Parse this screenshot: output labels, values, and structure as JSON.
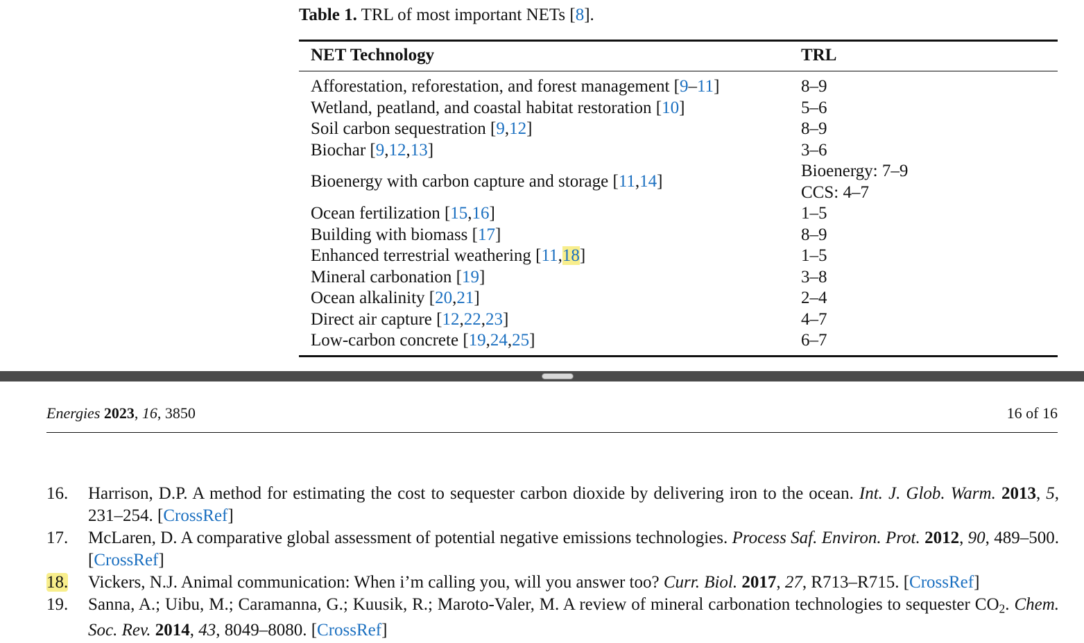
{
  "table": {
    "caption": [
      {
        "text": "Table 1.",
        "style": "bold"
      },
      " TRL of most important NETs [",
      {
        "text": "8",
        "style": "link"
      },
      "]."
    ],
    "headers": [
      "NET Technology",
      "TRL"
    ],
    "rows": [
      {
        "technology": [
          "Afforestation, reforestation, and forest management [",
          {
            "text": "9",
            "style": "link"
          },
          "–",
          {
            "text": "11",
            "style": "link"
          },
          "]"
        ],
        "trl": [
          "8–9"
        ]
      },
      {
        "technology": [
          "Wetland, peatland, and coastal habitat restoration [",
          {
            "text": "10",
            "style": "link"
          },
          "]"
        ],
        "trl": [
          "5–6"
        ]
      },
      {
        "technology": [
          "Soil carbon sequestration [",
          {
            "text": "9",
            "style": "link"
          },
          ",",
          {
            "text": "12",
            "style": "link"
          },
          "]"
        ],
        "trl": [
          "8–9"
        ]
      },
      {
        "technology": [
          "Biochar [",
          {
            "text": "9",
            "style": "link"
          },
          ",",
          {
            "text": "12",
            "style": "link"
          },
          ",",
          {
            "text": "13",
            "style": "link"
          },
          "]"
        ],
        "trl": [
          "3–6"
        ]
      },
      {
        "technology": [
          "Bioenergy with carbon capture and storage [",
          {
            "text": "11",
            "style": "link"
          },
          ",",
          {
            "text": "14",
            "style": "link"
          },
          "]"
        ],
        "trl": [
          "Bioenergy: 7–9",
          "CCS: 4–7"
        ]
      },
      {
        "technology": [
          "Ocean fertilization [",
          {
            "text": "15",
            "style": "link"
          },
          ",",
          {
            "text": "16",
            "style": "link"
          },
          "]"
        ],
        "trl": [
          "1–5"
        ]
      },
      {
        "technology": [
          "Building with biomass [",
          {
            "text": "17",
            "style": "link"
          },
          "]"
        ],
        "trl": [
          "8–9"
        ]
      },
      {
        "technology": [
          "Enhanced terrestrial weathering [",
          {
            "text": "11",
            "style": "link"
          },
          ",",
          {
            "text": "18",
            "style": "highlight-link"
          },
          "]"
        ],
        "trl": [
          "1–5"
        ]
      },
      {
        "technology": [
          "Mineral carbonation [",
          {
            "text": "19",
            "style": "link"
          },
          "]"
        ],
        "trl": [
          "3–8"
        ]
      },
      {
        "technology": [
          "Ocean alkalinity [",
          {
            "text": "20",
            "style": "link"
          },
          ",",
          {
            "text": "21",
            "style": "link"
          },
          "]"
        ],
        "trl": [
          "2–4"
        ]
      },
      {
        "technology": [
          "Direct air capture [",
          {
            "text": "12",
            "style": "link"
          },
          ",",
          {
            "text": "22",
            "style": "link"
          },
          ",",
          {
            "text": "23",
            "style": "link"
          },
          "]"
        ],
        "trl": [
          "4–7"
        ]
      },
      {
        "technology": [
          "Low-carbon concrete [",
          {
            "text": "19",
            "style": "link"
          },
          ",",
          {
            "text": "24",
            "style": "link"
          },
          ",",
          {
            "text": "25",
            "style": "link"
          },
          "]"
        ],
        "trl": [
          "6–7"
        ]
      }
    ]
  },
  "page": {
    "running_head": [
      {
        "text": "Energies",
        "style": "italic"
      },
      " ",
      {
        "text": "2023",
        "style": "bold"
      },
      ", ",
      {
        "text": "16",
        "style": "italic"
      },
      ", 3850"
    ],
    "page_number": "16 of 16",
    "references": [
      {
        "number": "16.",
        "text": [
          "Harrison, D.P. A method for estimating the cost to sequester carbon dioxide by delivering iron to the ocean. ",
          {
            "text": "Int. J. Glob. Warm.",
            "style": "italic"
          },
          " ",
          {
            "text": "2013",
            "style": "bold"
          },
          ", ",
          {
            "text": "5",
            "style": "italic"
          },
          ", 231–254. [",
          {
            "text": "CrossRef",
            "style": "link"
          },
          "]"
        ]
      },
      {
        "number": "17.",
        "text": [
          "McLaren, D. A comparative global assessment of potential negative emissions technologies. ",
          {
            "text": "Process Saf. Environ. Prot.",
            "style": "italic"
          },
          " ",
          {
            "text": "2012",
            "style": "bold"
          },
          ", ",
          {
            "text": "90",
            "style": "italic"
          },
          ", 489–500. [",
          {
            "text": "CrossRef",
            "style": "link"
          },
          "]"
        ]
      },
      {
        "number": "18.",
        "highlighted": true,
        "text": [
          "Vickers, N.J. Animal communication: When i’m calling you, will you answer too? ",
          {
            "text": "Curr. Biol.",
            "style": "italic"
          },
          " ",
          {
            "text": "2017",
            "style": "bold"
          },
          ", ",
          {
            "text": "27",
            "style": "italic"
          },
          ", R713–R715. [",
          {
            "text": "CrossRef",
            "style": "link"
          },
          "]"
        ]
      },
      {
        "number": "19.",
        "text": [
          "Sanna, A.; Uibu, M.; Caramanna, G.; Kuusik, R.; Maroto-Valer, M. A review of mineral carbonation technologies to sequester CO",
          {
            "text": "2",
            "style": "sub"
          },
          ". ",
          {
            "text": "Chem. Soc. Rev.",
            "style": "italic"
          },
          " ",
          {
            "text": "2014",
            "style": "bold"
          },
          ", ",
          {
            "text": "43",
            "style": "italic"
          },
          ", 8049–8080. [",
          {
            "text": "CrossRef",
            "style": "link"
          },
          "]"
        ]
      }
    ]
  }
}
